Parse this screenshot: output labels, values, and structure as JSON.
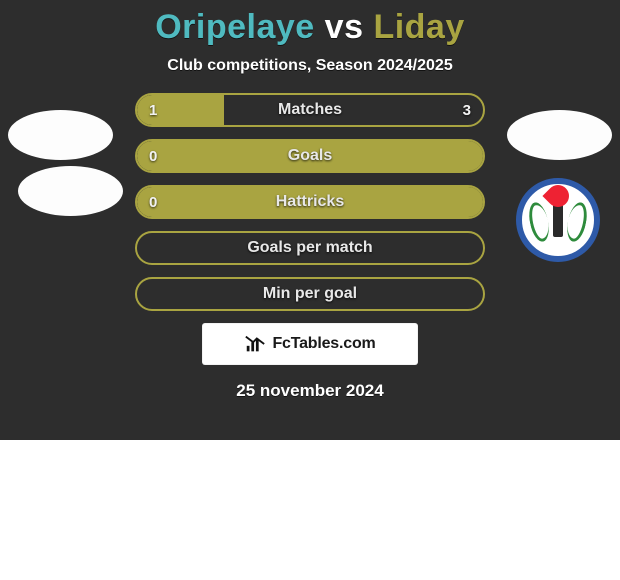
{
  "title": {
    "left_name": "Oripelaye",
    "vs": "vs",
    "right_name": "Liday",
    "left_color": "#4fbac0",
    "right_color": "#a9a441"
  },
  "subtitle": "Club competitions, Season 2024/2025",
  "left_badge_color": "#fdfdfd",
  "right_badge_color": "#fdfdfd",
  "right_club_ring_color": "#2e5aa8",
  "bar_border_color": "#a9a441",
  "bar_fill_color": "#a9a441",
  "bars": [
    {
      "label": "Matches",
      "left": "1",
      "right": "3",
      "fill_pct": 25
    },
    {
      "label": "Goals",
      "left": "0",
      "right": "",
      "fill_pct": 100
    },
    {
      "label": "Hattricks",
      "left": "0",
      "right": "",
      "fill_pct": 100
    },
    {
      "label": "Goals per match",
      "left": "",
      "right": "",
      "fill_pct": 0
    },
    {
      "label": "Min per goal",
      "left": "",
      "right": "",
      "fill_pct": 0
    }
  ],
  "watermark": "FcTables.com",
  "date": "25 november 2024",
  "card_bg": "#2d2d2d"
}
